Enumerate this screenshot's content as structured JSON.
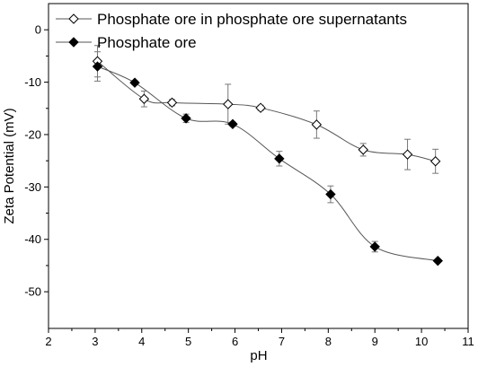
{
  "chart_data": {
    "type": "scatter",
    "title": "",
    "xlabel": "pH",
    "ylabel": "Zeta Potential (mV)",
    "xlim": [
      2,
      11
    ],
    "ylim": [
      -57,
      5
    ],
    "xticks": [
      2,
      3,
      4,
      5,
      6,
      7,
      8,
      9,
      10,
      11
    ],
    "yticks": [
      0,
      -10,
      -20,
      -30,
      -40,
      -50
    ],
    "grid": false,
    "legend_position": "top-left",
    "series": [
      {
        "name": "Phosphate ore in phosphate ore supernatants",
        "marker": "open-diamond",
        "color": "#000000",
        "x": [
          3.05,
          4.05,
          4.65,
          5.85,
          6.55,
          7.75,
          8.75,
          9.7,
          10.3
        ],
        "y": [
          -6.0,
          -13.2,
          -13.9,
          -14.2,
          -14.9,
          -18.1,
          -22.9,
          -23.8,
          -25.1
        ],
        "err": [
          3.0,
          1.5,
          0.6,
          3.8,
          0.5,
          2.6,
          1.2,
          2.9,
          2.3
        ]
      },
      {
        "name": "Phosphate ore",
        "marker": "filled-diamond",
        "color": "#000000",
        "x": [
          3.05,
          3.85,
          4.95,
          5.95,
          6.95,
          8.05,
          9.0,
          10.35
        ],
        "y": [
          -7.0,
          -10.1,
          -16.9,
          -18.0,
          -24.6,
          -31.4,
          -41.4,
          -44.1
        ],
        "err": [
          2.8,
          0.4,
          0.8,
          0.4,
          1.4,
          1.6,
          1.0,
          0.3
        ]
      }
    ]
  }
}
